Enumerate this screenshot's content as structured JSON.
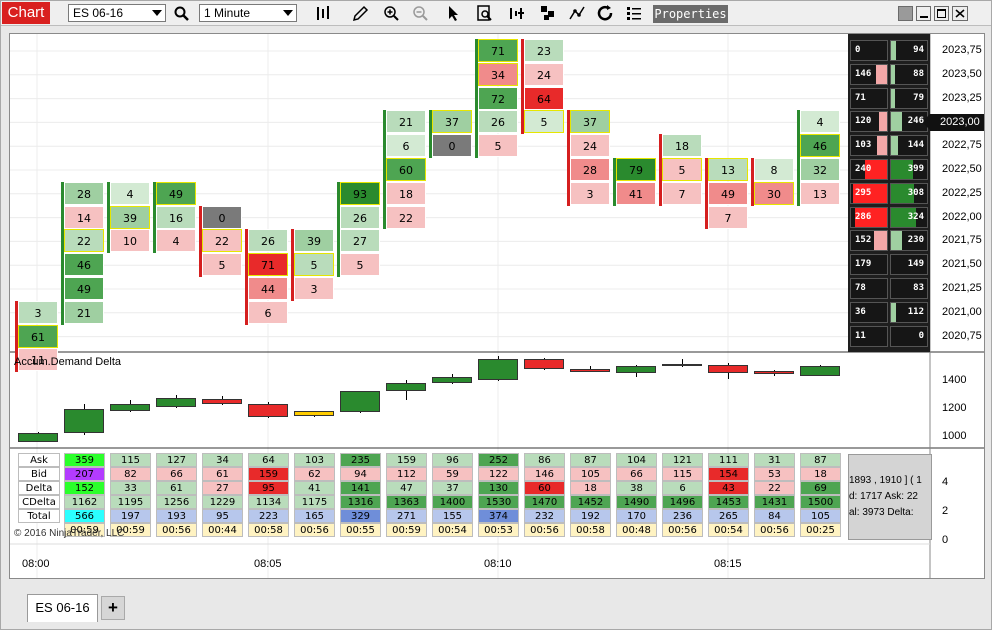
{
  "app": {
    "tab_label": "Chart",
    "properties_label": "Properties"
  },
  "toolbar": {
    "instrument": "ES 06-16",
    "interval": "1 Minute",
    "icons": [
      "search-icon",
      "bar-type-icon",
      "pencil-icon",
      "zoom-in-icon",
      "zoom-out-icon",
      "pointer-icon",
      "data-box-icon",
      "indicators-icon",
      "strategies-icon",
      "drawing-tools-icon",
      "refresh-icon",
      "list-icon"
    ]
  },
  "window_buttons": [
    "tile-icon",
    "minimize-icon",
    "maximize-icon",
    "close-icon"
  ],
  "price_axis": {
    "labels": [
      "2023,75",
      "2023,50",
      "2023,25",
      "2023,00",
      "2022,75",
      "2022,50",
      "2022,25",
      "2022,00",
      "2021,75",
      "2021,50",
      "2021,25",
      "2021,00",
      "2020,75"
    ],
    "current_price": "2023,00"
  },
  "footprint_bars": [
    {
      "start": 11,
      "cells": [
        {
          "v": "3",
          "c": "lg"
        },
        {
          "v": "61",
          "c": "mg",
          "o": 1
        },
        {
          "v": "11",
          "c": "lr"
        }
      ],
      "side": "red"
    },
    {
      "start": 6,
      "cells": [
        {
          "v": "28",
          "c": "mg2"
        },
        {
          "v": "14",
          "c": "lr"
        },
        {
          "v": "22",
          "c": "lg",
          "o": 1
        },
        {
          "v": "46",
          "c": "mg"
        },
        {
          "v": "49",
          "c": "mg"
        },
        {
          "v": "21",
          "c": "mg2"
        }
      ],
      "side": "green"
    },
    {
      "start": 6,
      "cells": [
        {
          "v": "4",
          "c": "xlg"
        },
        {
          "v": "39",
          "c": "mg2",
          "o": 1
        },
        {
          "v": "10",
          "c": "lr"
        }
      ],
      "side": "green"
    },
    {
      "start": 6,
      "cells": [
        {
          "v": "49",
          "c": "mg",
          "o": 1
        },
        {
          "v": "16",
          "c": "lg"
        },
        {
          "v": "4",
          "c": "lr"
        }
      ],
      "side": "green"
    },
    {
      "start": 7,
      "cells": [
        {
          "v": "0",
          "c": "gray"
        },
        {
          "v": "22",
          "c": "lr",
          "o": 1
        },
        {
          "v": "5",
          "c": "lr"
        }
      ],
      "side": "red"
    },
    {
      "start": 8,
      "cells": [
        {
          "v": "26",
          "c": "lg"
        },
        {
          "v": "71",
          "c": "r",
          "o": 1
        },
        {
          "v": "44",
          "c": "mr"
        },
        {
          "v": "6",
          "c": "lr"
        }
      ],
      "side": "red"
    },
    {
      "start": 8,
      "cells": [
        {
          "v": "39",
          "c": "mg2"
        },
        {
          "v": "5",
          "c": "lg",
          "o": 1
        },
        {
          "v": "3",
          "c": "lr"
        }
      ],
      "side": "red"
    },
    {
      "start": 6,
      "cells": [
        {
          "v": "93",
          "c": "dg",
          "o": 1
        },
        {
          "v": "26",
          "c": "lg"
        },
        {
          "v": "27",
          "c": "lg"
        },
        {
          "v": "5",
          "c": "lr"
        }
      ],
      "side": "green"
    },
    {
      "start": 3,
      "cells": [
        {
          "v": "21",
          "c": "lg"
        },
        {
          "v": "6",
          "c": "xlg"
        },
        {
          "v": "60",
          "c": "mg",
          "o": 1
        },
        {
          "v": "18",
          "c": "lr"
        },
        {
          "v": "22",
          "c": "lr"
        }
      ],
      "side": "green"
    },
    {
      "start": 3,
      "cells": [
        {
          "v": "37",
          "c": "mg2",
          "o": 1
        },
        {
          "v": "0",
          "c": "gray"
        }
      ],
      "side": "green"
    },
    {
      "start": 0,
      "cells": [
        {
          "v": "71",
          "c": "mg",
          "o": 1
        },
        {
          "v": "34",
          "c": "mr",
          "o": 1
        },
        {
          "v": "72",
          "c": "mg"
        },
        {
          "v": "26",
          "c": "lg"
        },
        {
          "v": "5",
          "c": "lr"
        }
      ],
      "side": "green"
    },
    {
      "start": 0,
      "cells": [
        {
          "v": "23",
          "c": "lg"
        },
        {
          "v": "24",
          "c": "lr"
        },
        {
          "v": "64",
          "c": "r"
        },
        {
          "v": "5",
          "c": "xlg",
          "o": 1
        }
      ],
      "side": "red"
    },
    {
      "start": 3,
      "cells": [
        {
          "v": "37",
          "c": "mg2",
          "o": 1
        },
        {
          "v": "24",
          "c": "lr"
        },
        {
          "v": "28",
          "c": "mr"
        },
        {
          "v": "3",
          "c": "lr"
        }
      ],
      "side": "red"
    },
    {
      "start": 5,
      "cells": [
        {
          "v": "79",
          "c": "dg",
          "o": 1
        },
        {
          "v": "41",
          "c": "mr"
        }
      ],
      "side": "green"
    },
    {
      "start": 4,
      "cells": [
        {
          "v": "18",
          "c": "lg"
        },
        {
          "v": "5",
          "c": "lr",
          "o": 1
        },
        {
          "v": "7",
          "c": "lr"
        }
      ],
      "side": "red"
    },
    {
      "start": 5,
      "cells": [
        {
          "v": "13",
          "c": "lg",
          "o": 1
        },
        {
          "v": "49",
          "c": "mr"
        },
        {
          "v": "7",
          "c": "lr"
        }
      ],
      "side": "red"
    },
    {
      "start": 5,
      "cells": [
        {
          "v": "8",
          "c": "xlg"
        },
        {
          "v": "30",
          "c": "mr",
          "o": 1
        }
      ],
      "side": "red"
    },
    {
      "start": 3,
      "cells": [
        {
          "v": "4",
          "c": "xlg"
        },
        {
          "v": "46",
          "c": "mg",
          "o": 1
        },
        {
          "v": "32",
          "c": "mg2"
        },
        {
          "v": "13",
          "c": "lr"
        }
      ],
      "side": "green"
    }
  ],
  "ladder": [
    {
      "bid": "0",
      "ask": "94"
    },
    {
      "bid": "146",
      "ask": "88"
    },
    {
      "bid": "71",
      "ask": "79"
    },
    {
      "bid": "120",
      "ask": "246"
    },
    {
      "bid": "103",
      "ask": "144"
    },
    {
      "bid": "240",
      "ask": "399"
    },
    {
      "bid": "295",
      "ask": "308"
    },
    {
      "bid": "286",
      "ask": "324"
    },
    {
      "bid": "152",
      "ask": "230"
    },
    {
      "bid": "179",
      "ask": "149"
    },
    {
      "bid": "78",
      "ask": "83"
    },
    {
      "bid": "36",
      "ask": "112"
    },
    {
      "bid": "11",
      "ask": "0"
    }
  ],
  "indicator": {
    "label": "Accum.Demand Delta",
    "axis_labels": [
      "1400",
      "1200",
      "1000"
    ],
    "candles": [
      {
        "o": 960,
        "c": 1020,
        "h": 1030,
        "l": 955,
        "col": "g"
      },
      {
        "o": 1020,
        "c": 1190,
        "h": 1230,
        "l": 1010,
        "col": "g"
      },
      {
        "o": 1180,
        "c": 1230,
        "h": 1255,
        "l": 1170,
        "col": "g"
      },
      {
        "o": 1205,
        "c": 1270,
        "h": 1290,
        "l": 1200,
        "col": "g"
      },
      {
        "o": 1265,
        "c": 1230,
        "h": 1285,
        "l": 1220,
        "col": "r"
      },
      {
        "o": 1230,
        "c": 1135,
        "h": 1240,
        "l": 1125,
        "col": "r"
      },
      {
        "o": 1180,
        "c": 1140,
        "h": 1182,
        "l": 1138,
        "col": "y"
      },
      {
        "o": 1170,
        "c": 1320,
        "h": 1320,
        "l": 1165,
        "col": "g"
      },
      {
        "o": 1320,
        "c": 1380,
        "h": 1400,
        "l": 1260,
        "col": "g"
      },
      {
        "o": 1380,
        "c": 1420,
        "h": 1445,
        "l": 1370,
        "col": "g"
      },
      {
        "o": 1400,
        "c": 1550,
        "h": 1570,
        "l": 1395,
        "col": "g"
      },
      {
        "o": 1550,
        "c": 1480,
        "h": 1555,
        "l": 1470,
        "col": "r"
      },
      {
        "o": 1480,
        "c": 1460,
        "h": 1500,
        "l": 1455,
        "col": "r"
      },
      {
        "o": 1450,
        "c": 1500,
        "h": 1505,
        "l": 1420,
        "col": "g"
      },
      {
        "o": 1500,
        "c": 1515,
        "h": 1550,
        "l": 1495,
        "col": "w"
      },
      {
        "o": 1510,
        "c": 1450,
        "h": 1520,
        "l": 1410,
        "col": "r"
      },
      {
        "o": 1465,
        "c": 1440,
        "h": 1475,
        "l": 1430,
        "col": "r"
      },
      {
        "o": 1430,
        "c": 1500,
        "h": 1505,
        "l": 1425,
        "col": "g"
      }
    ]
  },
  "stats": {
    "row_labels": [
      "Ask",
      "Bid",
      "Delta",
      "CDelta",
      "Total"
    ],
    "columns": [
      {
        "ask": "359",
        "bid": "207",
        "delta": "152",
        "cdelta": "1162",
        "total": "566",
        "time": "00:59"
      },
      {
        "ask": "115",
        "bid": "82",
        "delta": "33",
        "cdelta": "1195",
        "total": "197",
        "time": "00:59"
      },
      {
        "ask": "127",
        "bid": "66",
        "delta": "61",
        "cdelta": "1256",
        "total": "193",
        "time": "00:56"
      },
      {
        "ask": "34",
        "bid": "61",
        "delta": "27",
        "cdelta": "1229",
        "total": "95",
        "time": "00:44"
      },
      {
        "ask": "64",
        "bid": "159",
        "delta": "95",
        "cdelta": "1134",
        "total": "223",
        "time": "00:58"
      },
      {
        "ask": "103",
        "bid": "62",
        "delta": "41",
        "cdelta": "1175",
        "total": "165",
        "time": "00:56"
      },
      {
        "ask": "235",
        "bid": "94",
        "delta": "141",
        "cdelta": "1316",
        "total": "329",
        "time": "00:55"
      },
      {
        "ask": "159",
        "bid": "112",
        "delta": "47",
        "cdelta": "1363",
        "total": "271",
        "time": "00:59"
      },
      {
        "ask": "96",
        "bid": "59",
        "delta": "37",
        "cdelta": "1400",
        "total": "155",
        "time": "00:54"
      },
      {
        "ask": "252",
        "bid": "122",
        "delta": "130",
        "cdelta": "1530",
        "total": "374",
        "time": "00:53"
      },
      {
        "ask": "86",
        "bid": "146",
        "delta": "60",
        "cdelta": "1470",
        "total": "232",
        "time": "00:56"
      },
      {
        "ask": "87",
        "bid": "105",
        "delta": "18",
        "cdelta": "1452",
        "total": "192",
        "time": "00:58"
      },
      {
        "ask": "104",
        "bid": "66",
        "delta": "38",
        "cdelta": "1490",
        "total": "170",
        "time": "00:48"
      },
      {
        "ask": "121",
        "bid": "115",
        "delta": "6",
        "cdelta": "1496",
        "total": "236",
        "time": "00:56"
      },
      {
        "ask": "111",
        "bid": "154",
        "delta": "43",
        "cdelta": "1453",
        "total": "265",
        "time": "00:54"
      },
      {
        "ask": "31",
        "bid": "53",
        "delta": "22",
        "cdelta": "1431",
        "total": "84",
        "time": "00:56"
      },
      {
        "ask": "87",
        "bid": "18",
        "delta": "69",
        "cdelta": "1500",
        "total": "105",
        "time": "00:25"
      }
    ],
    "axis_labels": [
      "4",
      "2",
      "0"
    ]
  },
  "infobox": {
    "line1": "1893 , 1910 ]  ( 1",
    "line2": "d: 1717     Ask: 22",
    "line3": "al: 3973    Delta:"
  },
  "copyright": "© 2016 NinjaTrader, LLC",
  "time_labels": [
    "08:00",
    "08:05",
    "08:10",
    "08:15"
  ],
  "bottom": {
    "tab": "ES 06-16",
    "add": "+"
  }
}
